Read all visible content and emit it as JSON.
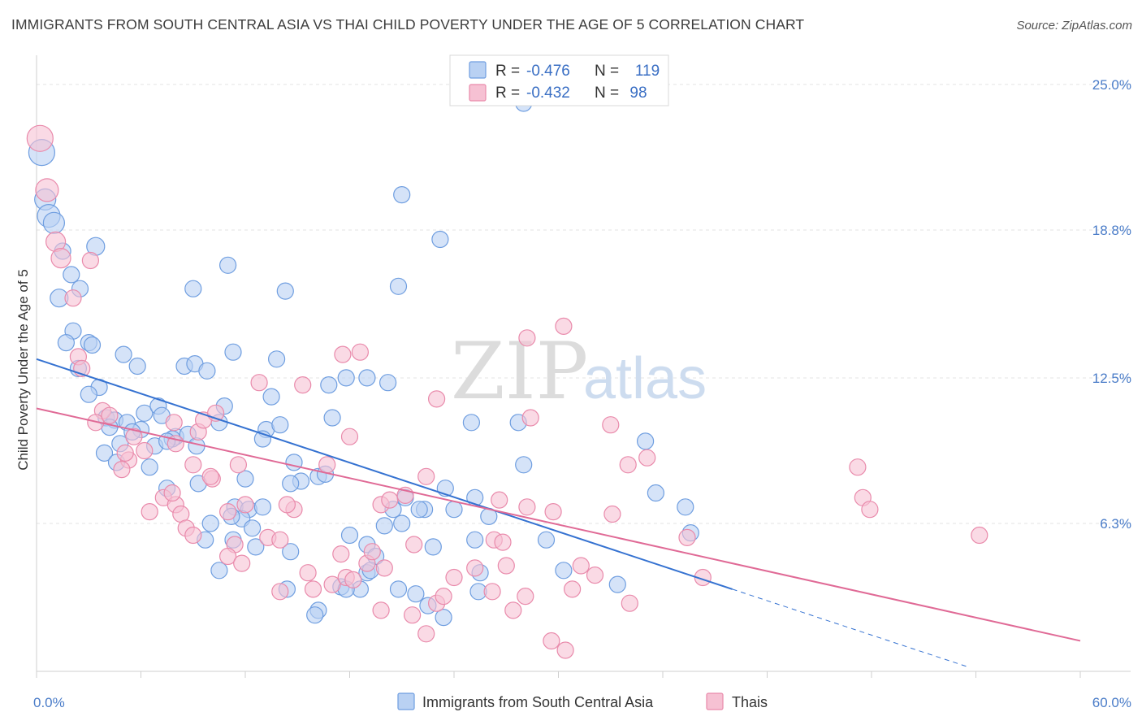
{
  "header": {
    "title": "IMMIGRANTS FROM SOUTH CENTRAL ASIA VS THAI CHILD POVERTY UNDER THE AGE OF 5 CORRELATION CHART",
    "source": "Source: ZipAtlas.com"
  },
  "watermark": {
    "zip": "ZIP",
    "atlas": "atlas"
  },
  "legend": {
    "rows": [
      {
        "r_label": "R =",
        "r_value": "-0.476",
        "n_label": "N =",
        "n_value": "119"
      },
      {
        "r_label": "R =",
        "r_value": "-0.432",
        "n_label": "N =",
        "n_value": "98"
      }
    ]
  },
  "bottom_legend": {
    "items": [
      "Immigrants from South Central Asia",
      "Thais"
    ]
  },
  "chart_data": {
    "type": "scatter",
    "xlabel": "",
    "ylabel": "Child Poverty Under the Age of 5",
    "xlim": [
      0,
      60
    ],
    "ylim": [
      0,
      26
    ],
    "x_tick_labels": [
      {
        "value": 0,
        "label": "0.0%"
      },
      {
        "value": 60,
        "label": "60.0%"
      }
    ],
    "y_tick_labels": [
      {
        "value": 6.3,
        "label": "6.3%"
      },
      {
        "value": 12.5,
        "label": "12.5%"
      },
      {
        "value": 18.8,
        "label": "18.8%"
      },
      {
        "value": 25.0,
        "label": "25.0%"
      }
    ],
    "grid": true,
    "legend_position": "top-center",
    "colors": {
      "series1_fill": "#b9d1f3",
      "series1_stroke": "#6f9ee0",
      "series1_line": "#3572d1",
      "series2_fill": "#f6c1d3",
      "series2_stroke": "#e98aab",
      "series2_line": "#e06a96",
      "grid": "#e3e3e3"
    },
    "series": [
      {
        "name": "Immigrants from South Central Asia",
        "trend": {
          "x0": 0,
          "y0": 13.3,
          "x1": 40,
          "y1": 3.5,
          "dash_to_x": 53.5,
          "dash_to_y": 0.2
        },
        "points": [
          [
            0.3,
            22.1,
            1.6
          ],
          [
            0.5,
            20.1,
            1.3
          ],
          [
            0.7,
            19.4,
            1.4
          ],
          [
            1.0,
            19.1,
            1.3
          ],
          [
            1.5,
            17.9,
            1.0
          ],
          [
            2.0,
            16.9,
            1.0
          ],
          [
            1.3,
            15.9,
            1.1
          ],
          [
            2.5,
            16.3,
            1.0
          ],
          [
            3.4,
            18.1,
            1.1
          ],
          [
            2.1,
            14.5,
            1.0
          ],
          [
            1.7,
            14.0,
            1.0
          ],
          [
            3.0,
            14.0,
            1.0
          ],
          [
            3.2,
            13.9,
            1.0
          ],
          [
            2.4,
            12.9,
            1.0
          ],
          [
            3.6,
            12.1,
            1.0
          ],
          [
            3.0,
            11.8,
            1.0
          ],
          [
            5.0,
            13.5,
            1.0
          ],
          [
            5.8,
            13.0,
            1.0
          ],
          [
            8.5,
            13.0,
            1.0
          ],
          [
            9.1,
            13.1,
            1.0
          ],
          [
            9.8,
            12.8,
            1.0
          ],
          [
            11.3,
            13.6,
            1.0
          ],
          [
            11.0,
            17.3,
            1.0
          ],
          [
            9.0,
            16.3,
            1.0
          ],
          [
            14.3,
            16.2,
            1.0
          ],
          [
            13.8,
            13.3,
            1.0
          ],
          [
            16.8,
            12.2,
            1.0
          ],
          [
            17.8,
            12.5,
            1.0
          ],
          [
            19.0,
            12.5,
            1.0
          ],
          [
            20.2,
            12.3,
            1.0
          ],
          [
            13.5,
            11.7,
            1.0
          ],
          [
            17.0,
            10.8,
            1.0
          ],
          [
            20.8,
            16.4,
            1.0
          ],
          [
            21.0,
            20.3,
            1.0
          ],
          [
            23.2,
            18.4,
            1.0
          ],
          [
            28.0,
            24.2,
            1.0
          ],
          [
            4.0,
            10.8,
            1.0
          ],
          [
            4.5,
            10.7,
            1.0
          ],
          [
            5.2,
            10.6,
            1.0
          ],
          [
            6.0,
            10.3,
            1.0
          ],
          [
            6.2,
            11.0,
            1.0
          ],
          [
            7.0,
            11.3,
            1.0
          ],
          [
            7.2,
            10.9,
            1.0
          ],
          [
            8.0,
            10.0,
            1.0
          ],
          [
            7.8,
            9.9,
            1.0
          ],
          [
            10.5,
            10.6,
            1.0
          ],
          [
            10.8,
            11.3,
            1.0
          ],
          [
            13.2,
            10.3,
            1.0
          ],
          [
            14.0,
            10.5,
            1.0
          ],
          [
            13.0,
            9.9,
            1.0
          ],
          [
            4.2,
            10.4,
            1.0
          ],
          [
            4.8,
            9.7,
            1.0
          ],
          [
            5.5,
            10.2,
            1.0
          ],
          [
            6.8,
            9.6,
            1.0
          ],
          [
            7.5,
            9.8,
            1.0
          ],
          [
            8.7,
            10.1,
            1.0
          ],
          [
            9.2,
            9.6,
            1.0
          ],
          [
            3.9,
            9.3,
            1.0
          ],
          [
            4.6,
            8.9,
            1.0
          ],
          [
            6.5,
            8.7,
            1.0
          ],
          [
            7.5,
            7.8,
            1.0
          ],
          [
            9.3,
            8.0,
            1.0
          ],
          [
            14.8,
            8.9,
            1.0
          ],
          [
            15.2,
            8.1,
            1.0
          ],
          [
            16.2,
            8.3,
            1.0
          ],
          [
            16.6,
            8.4,
            1.0
          ],
          [
            14.6,
            8.0,
            1.0
          ],
          [
            11.4,
            7.0,
            1.0
          ],
          [
            12.2,
            6.9,
            1.0
          ],
          [
            13.0,
            7.0,
            1.0
          ],
          [
            11.8,
            6.5,
            1.0
          ],
          [
            11.2,
            6.6,
            1.0
          ],
          [
            12.4,
            6.1,
            1.0
          ],
          [
            10.0,
            6.3,
            1.0
          ],
          [
            9.7,
            5.6,
            1.0
          ],
          [
            11.3,
            5.6,
            1.0
          ],
          [
            12.6,
            5.3,
            1.0
          ],
          [
            14.6,
            5.1,
            1.0
          ],
          [
            10.5,
            4.3,
            1.0
          ],
          [
            14.4,
            3.5,
            1.0
          ],
          [
            18.0,
            5.8,
            1.0
          ],
          [
            19.0,
            5.4,
            1.0
          ],
          [
            20.0,
            6.2,
            1.0
          ],
          [
            21.0,
            6.3,
            1.0
          ],
          [
            20.5,
            6.9,
            1.0
          ],
          [
            22.3,
            6.9,
            1.0
          ],
          [
            22.8,
            5.3,
            1.0
          ],
          [
            19.0,
            4.2,
            1.0
          ],
          [
            19.5,
            4.9,
            1.0
          ],
          [
            17.5,
            3.6,
            1.0
          ],
          [
            18.6,
            3.5,
            1.0
          ],
          [
            20.8,
            3.5,
            1.0
          ],
          [
            21.8,
            3.3,
            1.0
          ],
          [
            16.2,
            2.6,
            1.0
          ],
          [
            16.0,
            2.4,
            1.0
          ],
          [
            22.5,
            2.8,
            1.0
          ],
          [
            23.4,
            2.3,
            1.0
          ],
          [
            25.2,
            7.4,
            1.0
          ],
          [
            23.5,
            7.8,
            1.0
          ],
          [
            24.0,
            6.9,
            1.0
          ],
          [
            25.2,
            5.6,
            1.0
          ],
          [
            26.0,
            6.6,
            1.0
          ],
          [
            25.4,
            3.4,
            1.0
          ],
          [
            25.5,
            4.2,
            1.0
          ],
          [
            25.0,
            10.6,
            1.0
          ],
          [
            27.7,
            10.6,
            1.0
          ],
          [
            28.0,
            8.8,
            1.0
          ],
          [
            29.3,
            5.6,
            1.0
          ],
          [
            30.3,
            4.3,
            1.0
          ],
          [
            33.4,
            3.7,
            1.0
          ],
          [
            35.0,
            9.8,
            1.0
          ],
          [
            35.6,
            7.6,
            1.0
          ],
          [
            37.3,
            7.0,
            1.0
          ],
          [
            37.6,
            5.9,
            1.0
          ],
          [
            21.2,
            7.4,
            1.0
          ],
          [
            22.0,
            6.9,
            1.0
          ],
          [
            19.2,
            4.3,
            1.0
          ],
          [
            17.8,
            3.5,
            1.0
          ],
          [
            12.0,
            8.2,
            1.0
          ]
        ]
      },
      {
        "name": "Thais",
        "trend": {
          "x0": 0,
          "y0": 11.2,
          "x1": 60,
          "y1": 1.3
        },
        "points": [
          [
            0.2,
            22.7,
            1.6
          ],
          [
            0.6,
            20.5,
            1.4
          ],
          [
            1.1,
            18.3,
            1.2
          ],
          [
            1.4,
            17.6,
            1.2
          ],
          [
            3.1,
            17.5,
            1.0
          ],
          [
            2.1,
            15.9,
            1.0
          ],
          [
            2.4,
            13.4,
            1.0
          ],
          [
            2.6,
            12.9,
            1.0
          ],
          [
            3.8,
            11.1,
            1.0
          ],
          [
            3.4,
            10.6,
            1.0
          ],
          [
            4.2,
            10.9,
            1.0
          ],
          [
            5.6,
            10.0,
            1.0
          ],
          [
            6.2,
            9.4,
            1.0
          ],
          [
            5.3,
            9.0,
            1.0
          ],
          [
            4.9,
            8.6,
            1.0
          ],
          [
            8.0,
            9.7,
            1.0
          ],
          [
            7.9,
            10.6,
            1.0
          ],
          [
            9.3,
            10.2,
            1.0
          ],
          [
            9.6,
            10.7,
            1.0
          ],
          [
            10.3,
            11.0,
            1.0
          ],
          [
            9.0,
            8.8,
            1.0
          ],
          [
            10.1,
            8.2,
            1.0
          ],
          [
            11.6,
            8.8,
            1.0
          ],
          [
            12.8,
            12.3,
            1.0
          ],
          [
            15.3,
            12.2,
            1.0
          ],
          [
            16.7,
            8.8,
            1.0
          ],
          [
            17.6,
            13.5,
            1.0
          ],
          [
            18.6,
            13.6,
            1.0
          ],
          [
            18.0,
            10.0,
            1.0
          ],
          [
            23.0,
            11.6,
            1.0
          ],
          [
            28.2,
            14.2,
            1.0
          ],
          [
            30.3,
            14.7,
            1.0
          ],
          [
            28.4,
            10.8,
            1.0
          ],
          [
            33.0,
            10.5,
            1.0
          ],
          [
            34.0,
            8.8,
            1.0
          ],
          [
            35.1,
            9.1,
            1.0
          ],
          [
            47.2,
            8.7,
            1.0
          ],
          [
            47.5,
            7.4,
            1.0
          ],
          [
            47.9,
            6.9,
            1.0
          ],
          [
            54.2,
            5.8,
            1.0
          ],
          [
            6.5,
            6.8,
            1.0
          ],
          [
            7.3,
            7.4,
            1.0
          ],
          [
            8.0,
            7.1,
            1.0
          ],
          [
            8.3,
            6.7,
            1.0
          ],
          [
            8.6,
            6.1,
            1.0
          ],
          [
            9.0,
            5.8,
            1.0
          ],
          [
            7.8,
            7.6,
            1.0
          ],
          [
            10.0,
            8.3,
            1.0
          ],
          [
            11.0,
            6.8,
            1.0
          ],
          [
            12.0,
            7.1,
            1.0
          ],
          [
            11.4,
            5.4,
            1.0
          ],
          [
            11.0,
            4.9,
            1.0
          ],
          [
            11.8,
            4.6,
            1.0
          ],
          [
            13.3,
            5.7,
            1.0
          ],
          [
            14.0,
            5.6,
            1.0
          ],
          [
            14.8,
            6.9,
            1.0
          ],
          [
            14.4,
            7.1,
            1.0
          ],
          [
            15.6,
            4.2,
            1.0
          ],
          [
            14.0,
            3.4,
            1.0
          ],
          [
            15.9,
            3.5,
            1.0
          ],
          [
            17.0,
            3.7,
            1.0
          ],
          [
            17.8,
            4.0,
            1.0
          ],
          [
            19.0,
            4.6,
            1.0
          ],
          [
            19.3,
            5.1,
            1.0
          ],
          [
            20.0,
            4.4,
            1.0
          ],
          [
            19.8,
            7.1,
            1.0
          ],
          [
            20.3,
            7.3,
            1.0
          ],
          [
            21.2,
            7.5,
            1.0
          ],
          [
            21.7,
            5.4,
            1.0
          ],
          [
            22.4,
            8.3,
            1.0
          ],
          [
            19.8,
            2.6,
            1.0
          ],
          [
            21.6,
            2.4,
            1.0
          ],
          [
            23.0,
            2.9,
            1.0
          ],
          [
            22.4,
            1.6,
            1.0
          ],
          [
            23.4,
            3.2,
            1.0
          ],
          [
            24.0,
            4.0,
            1.0
          ],
          [
            25.2,
            4.4,
            1.0
          ],
          [
            26.2,
            3.4,
            1.0
          ],
          [
            27.0,
            4.5,
            1.0
          ],
          [
            26.3,
            5.6,
            1.0
          ],
          [
            27.4,
            2.6,
            1.0
          ],
          [
            26.8,
            5.5,
            1.0
          ],
          [
            28.2,
            7.0,
            1.0
          ],
          [
            26.6,
            7.3,
            1.0
          ],
          [
            28.1,
            3.2,
            1.0
          ],
          [
            29.7,
            6.8,
            1.0
          ],
          [
            30.8,
            3.5,
            1.0
          ],
          [
            31.3,
            4.5,
            1.0
          ],
          [
            32.1,
            4.1,
            1.0
          ],
          [
            34.1,
            2.9,
            1.0
          ],
          [
            33.1,
            6.7,
            1.0
          ],
          [
            37.4,
            5.7,
            1.0
          ],
          [
            38.3,
            4.0,
            1.0
          ],
          [
            29.6,
            1.3,
            1.0
          ],
          [
            30.4,
            0.9,
            1.0
          ],
          [
            17.5,
            5.0,
            1.0
          ],
          [
            18.2,
            3.9,
            1.0
          ],
          [
            5.1,
            9.3,
            1.0
          ]
        ]
      }
    ]
  }
}
